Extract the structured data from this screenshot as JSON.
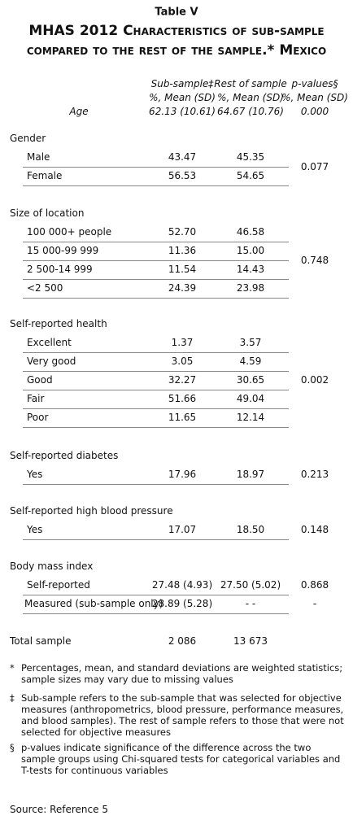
{
  "title": {
    "label": "Table V",
    "line1": "MHAS 2012 Characteristics of sub-sample",
    "line2": "compared to the rest of the sample.* Mexico"
  },
  "columns": [
    {
      "name": "Sub-sample‡",
      "unit": "%, Mean (SD)"
    },
    {
      "name": "Rest of sample",
      "unit": "%, Mean (SD)"
    },
    {
      "name": "p-values§",
      "unit": "%, Mean (SD)"
    }
  ],
  "age": {
    "label": "Age",
    "values": [
      "62.13 (10.61)",
      "64.67 (10.76)",
      "0.000"
    ]
  },
  "sections": [
    {
      "title": "Gender",
      "p_value": "0.077",
      "rows": [
        {
          "label": "Male",
          "values": [
            "43.47",
            "45.35"
          ]
        },
        {
          "label": "Female",
          "values": [
            "56.53",
            "54.65"
          ]
        }
      ]
    },
    {
      "title": "Size of location",
      "p_value": "0.748",
      "rows": [
        {
          "label": "100 000+ people",
          "values": [
            "52.70",
            "46.58"
          ]
        },
        {
          "label": "15 000-99 999",
          "values": [
            "11.36",
            "15.00"
          ]
        },
        {
          "label": "2 500-14 999",
          "values": [
            "11.54",
            "14.43"
          ]
        },
        {
          "label": "<2 500",
          "values": [
            "24.39",
            "23.98"
          ]
        }
      ]
    },
    {
      "title": "Self-reported health",
      "p_value": "0.002",
      "rows": [
        {
          "label": "Excellent",
          "values": [
            "1.37",
            "3.57"
          ]
        },
        {
          "label": "Very good",
          "values": [
            "3.05",
            "4.59"
          ]
        },
        {
          "label": "Good",
          "values": [
            "32.27",
            "30.65"
          ]
        },
        {
          "label": "Fair",
          "values": [
            "51.66",
            "49.04"
          ]
        },
        {
          "label": "Poor",
          "values": [
            "11.65",
            "12.14"
          ]
        }
      ]
    },
    {
      "title": "Self-reported diabetes",
      "p_value": "0.213",
      "rows": [
        {
          "label": "Yes",
          "values": [
            "17.96",
            "18.97"
          ]
        }
      ]
    },
    {
      "title": "Self-reported high blood pressure",
      "p_value": "0.148",
      "rows": [
        {
          "label": "Yes",
          "values": [
            "17.07",
            "18.50"
          ]
        }
      ]
    },
    {
      "title": "Body mass index",
      "rows": [
        {
          "label": "Self-reported",
          "values": [
            "27.48 (4.93)",
            "27.50 (5.02)"
          ],
          "p_value": "0.868"
        },
        {
          "label": "Measured (sub-sample only)",
          "values": [
            "28.89 (5.28)",
            "-   -"
          ],
          "p_value": "-"
        }
      ]
    }
  ],
  "total": {
    "label": "Total sample",
    "values": [
      "2 086",
      "13 673"
    ]
  },
  "footnotes": [
    {
      "mark": "*",
      "text": "Percentages, mean, and standard deviations are weighted statistics; sample sizes may vary due to missing values"
    },
    {
      "mark": "‡",
      "text": "Sub-sample refers to the sub-sample that was selected for objective measures (anthropometrics, blood pressure, performance measures, and blood samples). The rest of sample refers to those that were not selected for objective measures"
    },
    {
      "mark": "§",
      "text": "p-values indicate significance of the difference across the two sample groups using Chi-squared tests for categorical variables and T-tests for continuous variables"
    }
  ],
  "source": "Source: Reference 5"
}
